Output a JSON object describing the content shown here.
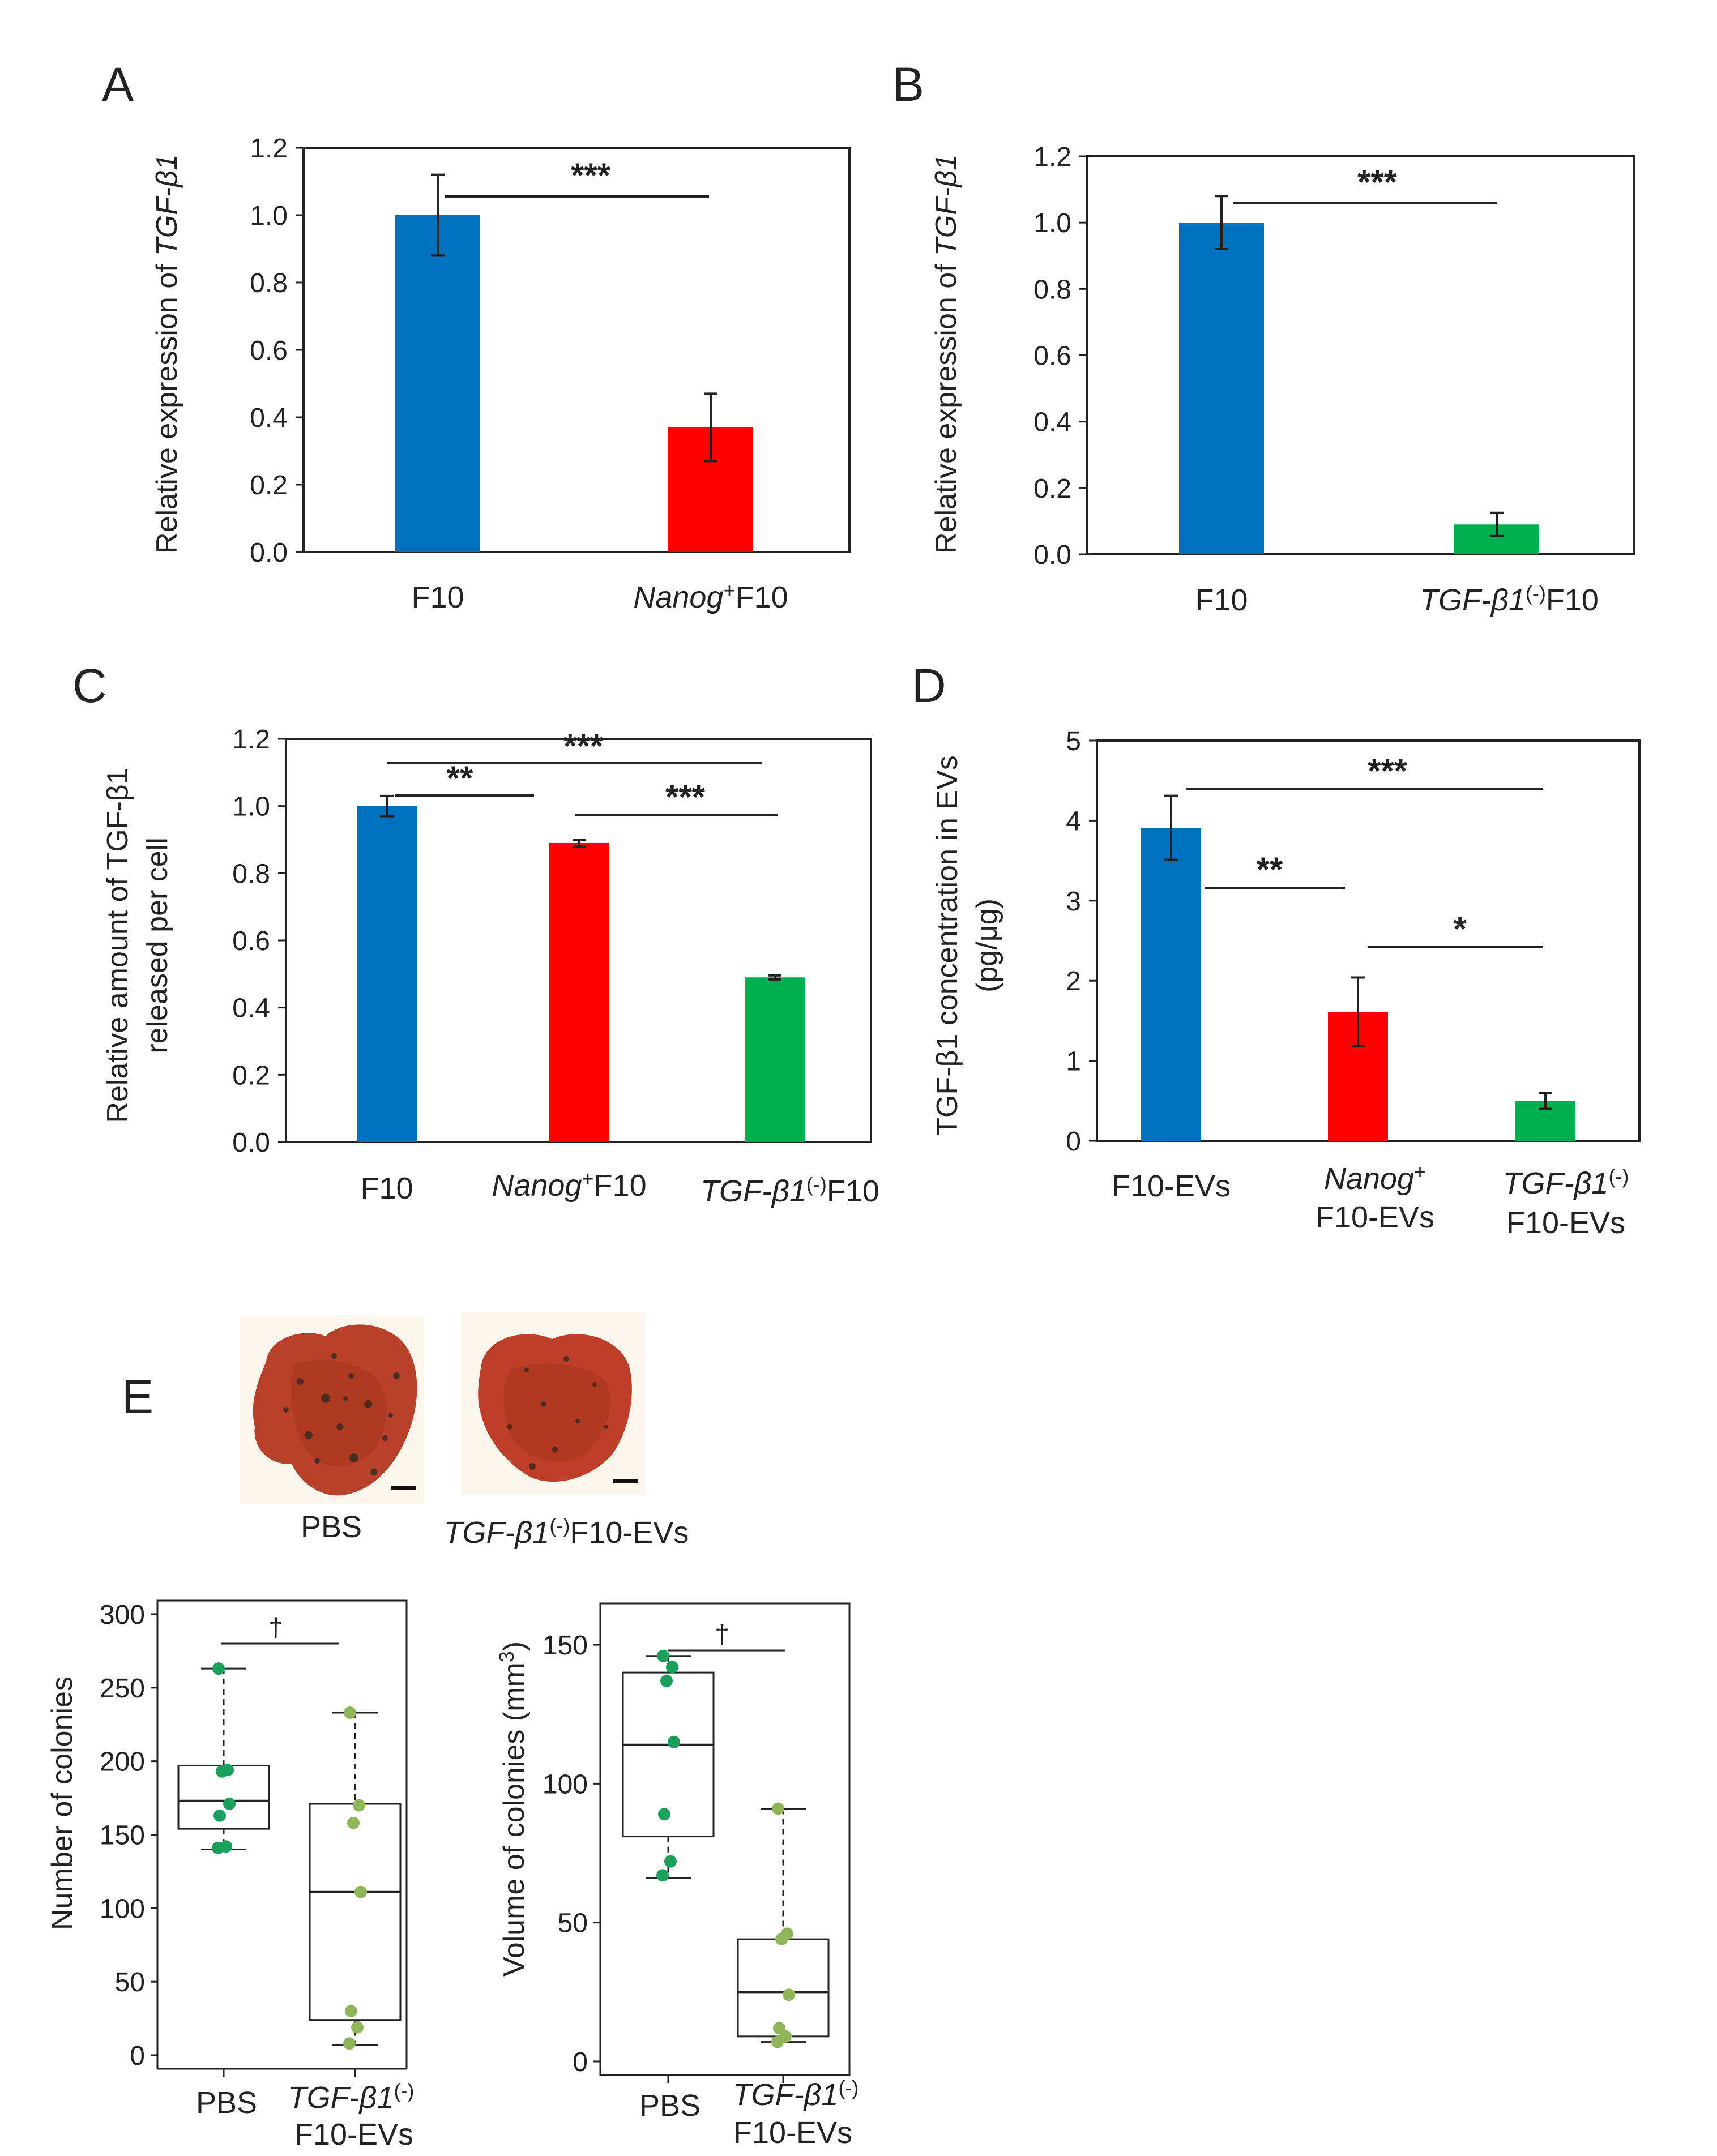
{
  "panels": {
    "A": {
      "letter": "A",
      "ylabel_prefix": "Relative expression of ",
      "ylabel_gene": "TGF-β1",
      "category_2_italic": "Nanog",
      "category_2_sup": "+",
      "category_2_rest": "F10",
      "sig": "***"
    },
    "B": {
      "letter": "B",
      "ylabel_prefix": "Relative expression of ",
      "ylabel_gene": "TGF-β1",
      "category_2_italic": "TGF-β1",
      "category_2_sup": "(-)",
      "category_2_rest": "F10",
      "sig": "***"
    },
    "C": {
      "letter": "C",
      "ylabel_line1": "Relative amount of TGF-β1",
      "ylabel_line2": "released per cell",
      "sig_1_2": "**",
      "sig_1_3": "***",
      "sig_2_3": "***"
    },
    "D": {
      "letter": "D",
      "ylabel_line1": "TGF-β1 concentration in EVs",
      "ylabel_line2": "(pg/μg)",
      "sig_1_2": "**",
      "sig_1_3": "***",
      "sig_2_3": "*"
    },
    "E": {
      "letter": "E",
      "photo_left_label": "PBS",
      "photo_right_label_italic": "TGF-β1",
      "photo_right_label_sup": "(-)",
      "photo_right_label_rest": "F10-EVs",
      "sig_left": "†",
      "sig_right": "†",
      "box_cat_1": "PBS",
      "box_cat_2_italic": "TGF-β1",
      "box_cat_2_sup": "(-)",
      "box_cat_2_line2": "F10-EVs",
      "left_ylabel": "Number of colonies",
      "right_ylabel_prefix": "Volume of colonies (mm",
      "right_ylabel_sup": "3",
      "right_ylabel_suffix": ")"
    }
  },
  "colors": {
    "blue": "#0070c0",
    "red": "#ff0000",
    "green": "#00b050",
    "dot_dark": "#1aa05a",
    "dot_light": "#8fb55a",
    "tissue": "#b9402a"
  },
  "chart_data": [
    {
      "panel": "A",
      "type": "bar",
      "categories": [
        "F10",
        "Nanog+F10"
      ],
      "values": [
        1.0,
        0.37
      ],
      "errors": [
        0.12,
        0.1
      ],
      "colors": [
        "#0070c0",
        "#ff0000"
      ],
      "ylim": [
        0,
        1.2
      ],
      "yticks": [
        "0.0",
        "0.2",
        "0.4",
        "0.6",
        "0.8",
        "1.0",
        "1.2"
      ]
    },
    {
      "panel": "B",
      "type": "bar",
      "categories": [
        "F10",
        "TGF-β1(-)F10"
      ],
      "values": [
        1.0,
        0.09
      ],
      "errors": [
        0.08,
        0.035
      ],
      "colors": [
        "#0070c0",
        "#00b050"
      ],
      "ylim": [
        0,
        1.2
      ],
      "yticks": [
        "0.0",
        "0.2",
        "0.4",
        "0.6",
        "0.8",
        "1.0",
        "1.2"
      ]
    },
    {
      "panel": "C",
      "type": "bar",
      "categories": [
        "F10",
        "Nanog+F10",
        "TGF-β1(-)F10"
      ],
      "values": [
        1.0,
        0.89,
        0.49
      ],
      "errors": [
        0.03,
        0.01,
        0.006
      ],
      "colors": [
        "#0070c0",
        "#ff0000",
        "#00b050"
      ],
      "ylim": [
        0,
        1.2
      ],
      "yticks": [
        "0.0",
        "0.2",
        "0.4",
        "0.6",
        "0.8",
        "1.0",
        "1.2"
      ]
    },
    {
      "panel": "D",
      "type": "bar",
      "categories": [
        "F10-EVs",
        "Nanog+ F10-EVs",
        "TGF-β1(-) F10-EVs"
      ],
      "values": [
        3.91,
        1.61,
        0.5
      ],
      "errors": [
        0.4,
        0.43,
        0.1
      ],
      "colors": [
        "#0070c0",
        "#ff0000",
        "#00b050"
      ],
      "ylim": [
        0,
        5
      ],
      "yticks": [
        "0",
        "1",
        "2",
        "3",
        "4",
        "5"
      ]
    },
    {
      "panel": "E-left",
      "type": "box",
      "ylabel": "Number of colonies",
      "categories": [
        "PBS",
        "TGF-β1(-) F10-EVs"
      ],
      "ylim": [
        0,
        300
      ],
      "yticks": [
        "0",
        "50",
        "100",
        "150",
        "200",
        "250",
        "300"
      ],
      "boxes": [
        {
          "min": 140,
          "q1": 154,
          "median": 173,
          "q3": 197,
          "max": 263,
          "points": [
            263,
            194,
            193,
            171,
            163,
            142,
            141
          ]
        },
        {
          "min": 7,
          "q1": 24,
          "median": 111,
          "q3": 171,
          "max": 233,
          "points": [
            233,
            170,
            158,
            111,
            30,
            19,
            8
          ]
        }
      ]
    },
    {
      "panel": "E-right",
      "type": "box",
      "ylabel": "Volume of colonies (mm3)",
      "categories": [
        "PBS",
        "TGF-β1(-) F10-EVs"
      ],
      "ylim": [
        0,
        160
      ],
      "yticks": [
        "0",
        "50",
        "100",
        "150"
      ],
      "boxes": [
        {
          "min": 66,
          "q1": 81,
          "median": 114,
          "q3": 140,
          "max": 146,
          "points": [
            146,
            142,
            137,
            115,
            89,
            72,
            67
          ]
        },
        {
          "min": 7,
          "q1": 9,
          "median": 25,
          "q3": 44,
          "max": 91,
          "points": [
            91,
            46,
            44,
            24,
            12,
            9,
            7
          ]
        }
      ]
    }
  ]
}
